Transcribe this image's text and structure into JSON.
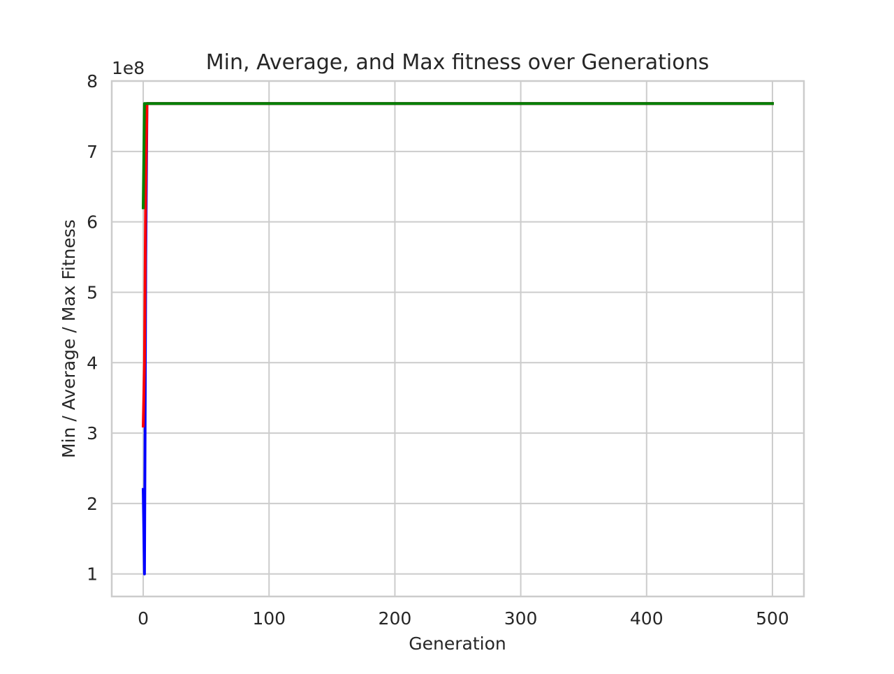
{
  "chart_data": {
    "type": "line",
    "title": "Min, Average, and Max fitness over Generations",
    "xlabel": "Generation",
    "ylabel": "Min / Average / Max Fitness",
    "y_offset_label": "1e8",
    "xlim": [
      -25,
      525
    ],
    "ylim": [
      0.68,
      8.0
    ],
    "xticks": [
      0,
      100,
      200,
      300,
      400,
      500
    ],
    "xtick_labels": [
      "0",
      "100",
      "200",
      "300",
      "400",
      "500"
    ],
    "yticks": [
      1,
      2,
      3,
      4,
      5,
      6,
      7,
      8
    ],
    "ytick_labels": [
      "1",
      "2",
      "3",
      "4",
      "5",
      "6",
      "7",
      "8"
    ],
    "y_scale_note": "values in units of 1e8",
    "grid": true,
    "series": [
      {
        "color": "#0000ff",
        "x": [
          0,
          0.5,
          1,
          1.5,
          2,
          3,
          4,
          5,
          10,
          50,
          100,
          200,
          300,
          400,
          500
        ],
        "y": [
          2.2,
          1.6,
          1.0,
          3.1,
          5.5,
          7.68,
          7.68,
          7.68,
          7.68,
          7.68,
          7.68,
          7.68,
          7.68,
          7.68,
          7.68
        ]
      },
      {
        "color": "#ff0000",
        "x": [
          0,
          1,
          2,
          3,
          4,
          5,
          10,
          50,
          100,
          200,
          300,
          400,
          500
        ],
        "y": [
          3.1,
          4.0,
          6.5,
          7.68,
          7.68,
          7.68,
          7.68,
          7.68,
          7.68,
          7.68,
          7.68,
          7.68,
          7.68
        ]
      },
      {
        "color": "#008000",
        "x": [
          0,
          1,
          2,
          3,
          5,
          10,
          50,
          100,
          200,
          300,
          400,
          500
        ],
        "y": [
          6.2,
          7.68,
          7.68,
          7.68,
          7.68,
          7.68,
          7.68,
          7.68,
          7.68,
          7.68,
          7.68,
          7.68
        ]
      }
    ]
  }
}
